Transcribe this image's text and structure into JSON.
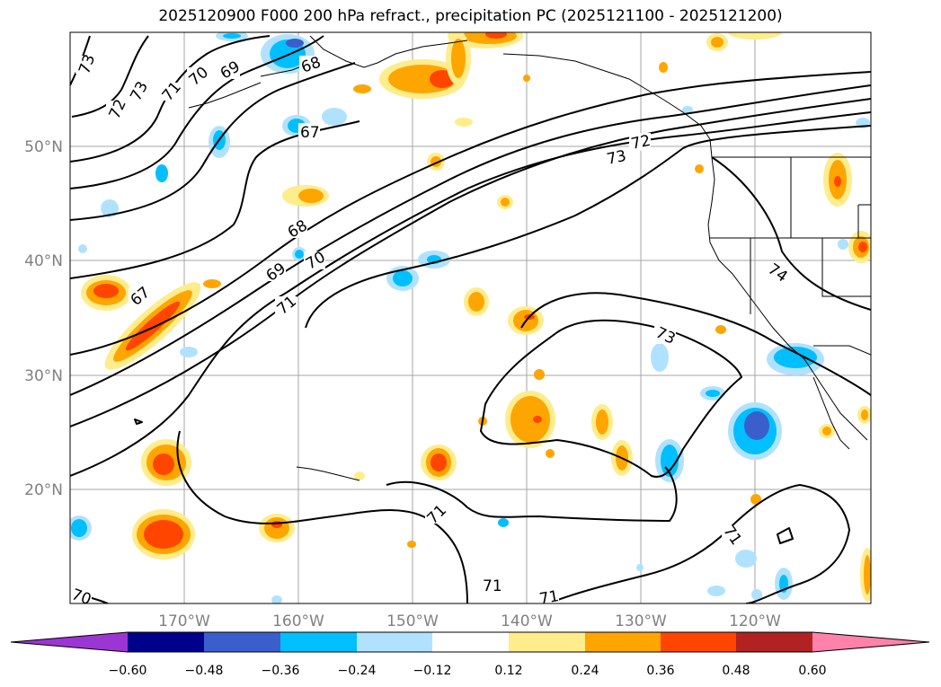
{
  "title": "2025120900 F000 200 hPa refract., precipitation PC (2025121100 - 2025121200)",
  "lat_labels": [
    "50°N",
    "40°N",
    "30°N",
    "20°N"
  ],
  "lon_labels": [
    "170°W",
    "160°W",
    "150°W",
    "140°W",
    "130°W",
    "120°W"
  ],
  "contour_labels": [
    "73",
    "72",
    "73",
    "71",
    "70",
    "69",
    "68",
    "67",
    "68",
    "69",
    "70",
    "71",
    "67",
    "72",
    "73",
    "74",
    "73",
    "71",
    "71",
    "71",
    "71",
    "70"
  ],
  "colorbar": {
    "colors": [
      "#9b36d4",
      "#00008b",
      "#3a5fcd",
      "#00bfff",
      "#b0e2ff",
      "#ffffff",
      "#ffec8b",
      "#ffa500",
      "#ff4500",
      "#b22222",
      "#ff82ab"
    ],
    "tick_labels": [
      "−0.60",
      "−0.48",
      "−0.36",
      "−0.24",
      "−0.12",
      "0.12",
      "0.24",
      "0.36",
      "0.48",
      "0.60"
    ]
  },
  "legend_colors": {
    "positive_low": "#ffec8b",
    "positive_mid": "#ffa500",
    "positive_high": "#ff4500",
    "negative_low": "#b0e2ff",
    "negative_mid": "#00bfff",
    "negative_high": "#3a5fcd"
  }
}
